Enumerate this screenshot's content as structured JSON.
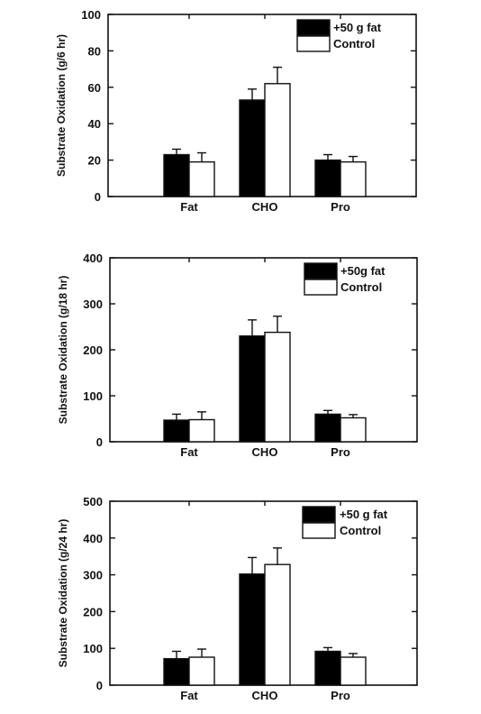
{
  "chart_data": [
    {
      "type": "bar",
      "ylabel": "Substrate Oxidation (g/6 hr)",
      "categories": [
        "Fat",
        "CHO",
        "Pro"
      ],
      "ylim": [
        0,
        100
      ],
      "yticks": [
        0,
        20,
        40,
        60,
        80,
        100
      ],
      "legend_position": "top-right",
      "series": [
        {
          "name": "+50 g fat",
          "color": "#000000",
          "values": [
            23,
            53,
            20
          ],
          "errors": [
            3,
            6,
            3
          ]
        },
        {
          "name": "Control",
          "color": "#ffffff",
          "values": [
            19,
            62,
            19
          ],
          "errors": [
            5,
            9,
            3
          ]
        }
      ]
    },
    {
      "type": "bar",
      "ylabel": "Substrate Oxidation (g/18 hr)",
      "categories": [
        "Fat",
        "CHO",
        "Pro"
      ],
      "ylim": [
        0,
        400
      ],
      "yticks": [
        0,
        100,
        200,
        300,
        400
      ],
      "legend_position": "top-right",
      "series": [
        {
          "name": "+50g fat",
          "color": "#000000",
          "values": [
            47,
            230,
            60
          ],
          "errors": [
            13,
            35,
            8
          ]
        },
        {
          "name": "Control",
          "color": "#ffffff",
          "values": [
            48,
            238,
            52
          ],
          "errors": [
            17,
            35,
            7
          ]
        }
      ]
    },
    {
      "type": "bar",
      "ylabel": "Substrate Oxidation (g/24 hr)",
      "categories": [
        "Fat",
        "CHO",
        "Pro"
      ],
      "ylim": [
        0,
        500
      ],
      "yticks": [
        0,
        100,
        200,
        300,
        400,
        500
      ],
      "legend_position": "top-right",
      "series": [
        {
          "name": "+50 g fat",
          "color": "#000000",
          "values": [
            72,
            302,
            92
          ],
          "errors": [
            20,
            45,
            10
          ]
        },
        {
          "name": "Control",
          "color": "#ffffff",
          "values": [
            76,
            328,
            76
          ],
          "errors": [
            22,
            45,
            10
          ]
        }
      ]
    }
  ]
}
